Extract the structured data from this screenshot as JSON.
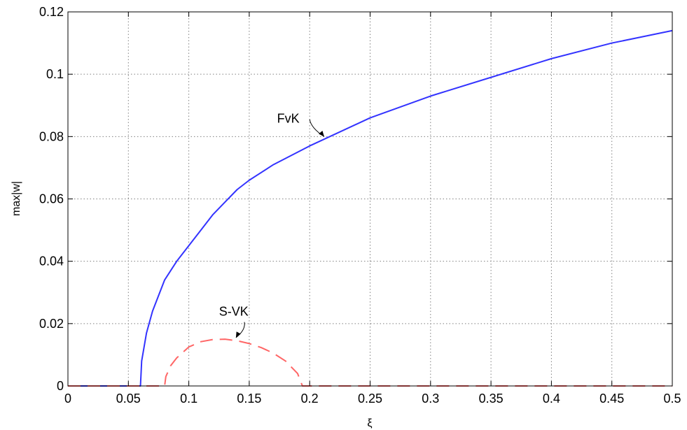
{
  "chart_data": {
    "type": "line",
    "title": "",
    "xlabel": "ξ",
    "ylabel": "max|w|",
    "xlim": [
      0,
      0.5
    ],
    "ylim": [
      0,
      0.12
    ],
    "xticks": [
      0,
      0.05,
      0.1,
      0.15,
      0.2,
      0.25,
      0.3,
      0.35,
      0.4,
      0.45,
      0.5
    ],
    "xtick_labels": [
      "0",
      "0.05",
      "0.1",
      "0.15",
      "0.2",
      "0.25",
      "0.3",
      "0.35",
      "0.4",
      "0.45",
      "0.5"
    ],
    "yticks": [
      0,
      0.02,
      0.04,
      0.06,
      0.08,
      0.1,
      0.12
    ],
    "ytick_labels": [
      "0",
      "0.02",
      "0.04",
      "0.06",
      "0.08",
      "0.1",
      "0.12"
    ],
    "grid": true,
    "series": [
      {
        "name": "FvK",
        "color": "#3333ff",
        "style": "solid",
        "x": [
          0,
          0.02,
          0.04,
          0.06,
          0.061,
          0.065,
          0.07,
          0.08,
          0.09,
          0.1,
          0.11,
          0.12,
          0.13,
          0.14,
          0.15,
          0.17,
          0.2,
          0.25,
          0.3,
          0.35,
          0.4,
          0.45,
          0.5
        ],
        "y": [
          0,
          0,
          0,
          0,
          0.008,
          0.017,
          0.024,
          0.034,
          0.04,
          0.045,
          0.05,
          0.055,
          0.059,
          0.063,
          0.066,
          0.071,
          0.077,
          0.086,
          0.093,
          0.099,
          0.105,
          0.11,
          0.114
        ]
      },
      {
        "name": "S-VK",
        "color": "#ff6666",
        "style": "dashed",
        "x": [
          0,
          0.02,
          0.04,
          0.06,
          0.08,
          0.081,
          0.085,
          0.09,
          0.1,
          0.11,
          0.12,
          0.13,
          0.14,
          0.15,
          0.16,
          0.17,
          0.18,
          0.19,
          0.194,
          0.25,
          0.3,
          0.35,
          0.4,
          0.45,
          0.5
        ],
        "y": [
          0,
          0,
          0,
          0,
          0,
          0.003,
          0.0065,
          0.009,
          0.0125,
          0.0142,
          0.0149,
          0.015,
          0.0145,
          0.0136,
          0.0123,
          0.0105,
          0.008,
          0.004,
          0,
          0,
          0,
          0,
          0,
          0,
          0
        ]
      }
    ],
    "annotations": [
      {
        "text": "FvK",
        "x": 0.213,
        "y": 0.079
      },
      {
        "text": "S-VK",
        "x": 0.139,
        "y": 0.015
      }
    ]
  }
}
